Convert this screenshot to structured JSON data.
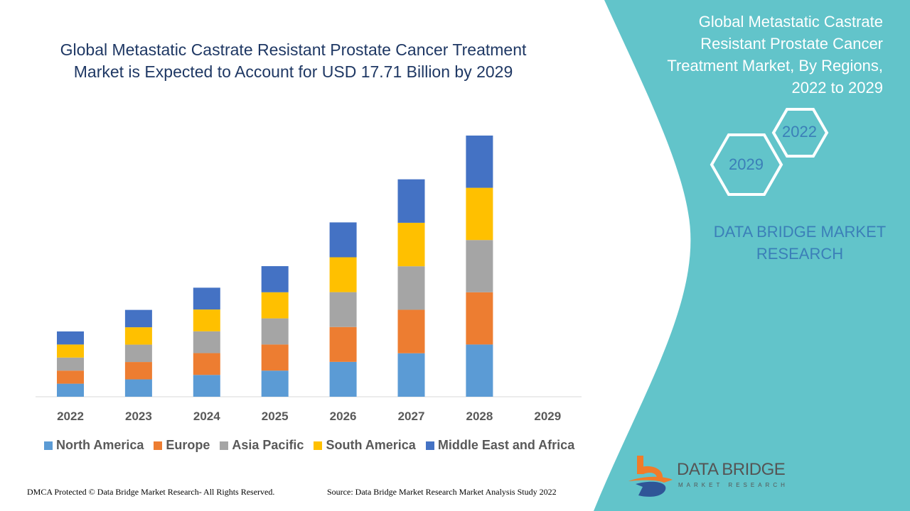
{
  "title": "Global Metastatic Castrate Resistant Prostate Cancer Treatment Market is Expected to Account for USD 17.71 Billion by 2029",
  "side_panel": {
    "title": "Global Metastatic Castrate Resistant Prostate Cancer Treatment Market, By Regions, 2022 to 2029",
    "hex_2022": "2022",
    "hex_2029": "2029",
    "brand": "DATA BRIDGE MARKET RESEARCH",
    "logo_name": "DATA BRIDGE",
    "logo_sub": "MARKET RESEARCH"
  },
  "footer": {
    "left": "DMCA Protected © Data Bridge Market Research- All Rights Reserved.",
    "right": "Source: Data Bridge Market Research Market Analysis Study 2022"
  },
  "colors": {
    "panel": "#62c4ca",
    "title": "#1f3864",
    "brand_text": "#3b7fb8"
  },
  "chart_data": {
    "type": "bar",
    "stacked": true,
    "categories": [
      "2022",
      "2023",
      "2024",
      "2025",
      "2026",
      "2027",
      "2028",
      "2029"
    ],
    "series": [
      {
        "name": "North America",
        "color": "#5b9bd5",
        "values": [
          1.0,
          1.33,
          1.67,
          2.0,
          2.67,
          3.33,
          4.0,
          0
        ]
      },
      {
        "name": "Europe",
        "color": "#ed7d31",
        "values": [
          1.0,
          1.33,
          1.67,
          2.0,
          2.67,
          3.33,
          4.0,
          0
        ]
      },
      {
        "name": "Asia Pacific",
        "color": "#a5a5a5",
        "values": [
          1.0,
          1.33,
          1.67,
          2.0,
          2.67,
          3.33,
          4.0,
          0
        ]
      },
      {
        "name": "South America",
        "color": "#ffc000",
        "values": [
          1.0,
          1.33,
          1.67,
          2.0,
          2.67,
          3.33,
          4.0,
          0
        ]
      },
      {
        "name": "Middle East and Africa",
        "color": "#4472c4",
        "values": [
          1.0,
          1.33,
          1.67,
          2.0,
          2.67,
          3.33,
          4.0,
          0
        ]
      }
    ],
    "y_axis_shown": false,
    "grid": false,
    "legend": "bottom"
  }
}
